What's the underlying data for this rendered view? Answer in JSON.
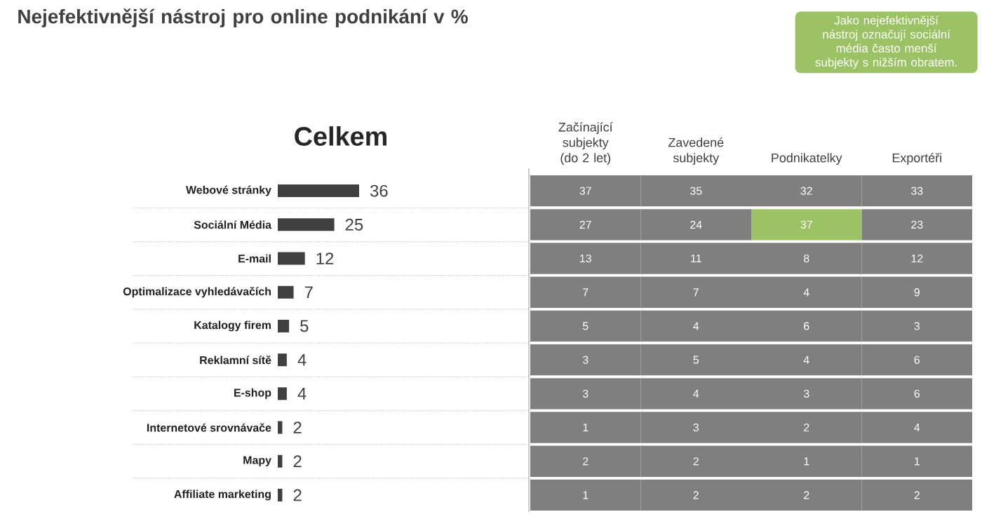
{
  "chart_data": [
    {
      "type": "bar",
      "orientation": "horizontal",
      "title": "Nejefektivnější nástroj pro online podnikání v %",
      "subtitle": "Celkem",
      "annotations": [
        "Jako nejefektivnější nástroj označují sociální média často menší subjekty s nižším obratem."
      ],
      "categories": [
        "Webové stránky",
        "Sociální Média",
        "E-mail",
        "Optimalizace vyhledávačích",
        "Katalogy firem",
        "Reklamní sítě",
        "E-shop",
        "Internetové srovnávače",
        "Mapy",
        "Affiliate marketing"
      ],
      "values": [
        36,
        25,
        12,
        7,
        5,
        4,
        4,
        2,
        2,
        2
      ],
      "color": "#404040",
      "data_labels": true
    },
    {
      "type": "heatmap",
      "data_labels": true,
      "categories": [
        "Začínající subjekty (do 2 let)",
        "Zavedené subjekty",
        "Podnikatelky",
        "Exportéři"
      ],
      "y_categories": [
        null,
        null,
        null,
        null,
        null,
        null,
        null,
        null,
        null,
        null
      ],
      "cells": [
        [
          37,
          35,
          32,
          33
        ],
        [
          27,
          24,
          37,
          23
        ],
        [
          13,
          11,
          8,
          12
        ],
        [
          7,
          7,
          4,
          9
        ],
        [
          5,
          4,
          6,
          3
        ],
        [
          3,
          5,
          4,
          6
        ],
        [
          3,
          4,
          3,
          6
        ],
        [
          1,
          3,
          2,
          4
        ],
        [
          2,
          2,
          1,
          1
        ],
        [
          1,
          2,
          2,
          2
        ]
      ],
      "colors": [
        [
          "#7f7f7f",
          "#7f7f7f",
          "#7f7f7f",
          "#7f7f7f"
        ],
        [
          "#7f7f7f",
          "#7f7f7f",
          "#9bc264",
          "#7f7f7f"
        ],
        [
          "#7f7f7f",
          "#7f7f7f",
          "#7f7f7f",
          "#7f7f7f"
        ],
        [
          "#7f7f7f",
          "#7f7f7f",
          "#7f7f7f",
          "#7f7f7f"
        ],
        [
          "#7f7f7f",
          "#7f7f7f",
          "#7f7f7f",
          "#7f7f7f"
        ],
        [
          "#7f7f7f",
          "#7f7f7f",
          "#7f7f7f",
          "#7f7f7f"
        ],
        [
          "#7f7f7f",
          "#7f7f7f",
          "#7f7f7f",
          "#7f7f7f"
        ],
        [
          "#7f7f7f",
          "#7f7f7f",
          "#7f7f7f",
          "#7f7f7f"
        ],
        [
          "#7f7f7f",
          "#7f7f7f",
          "#7f7f7f",
          "#7f7f7f"
        ],
        [
          "#7f7f7f",
          "#7f7f7f",
          "#7f7f7f",
          "#7f7f7f"
        ]
      ]
    }
  ]
}
